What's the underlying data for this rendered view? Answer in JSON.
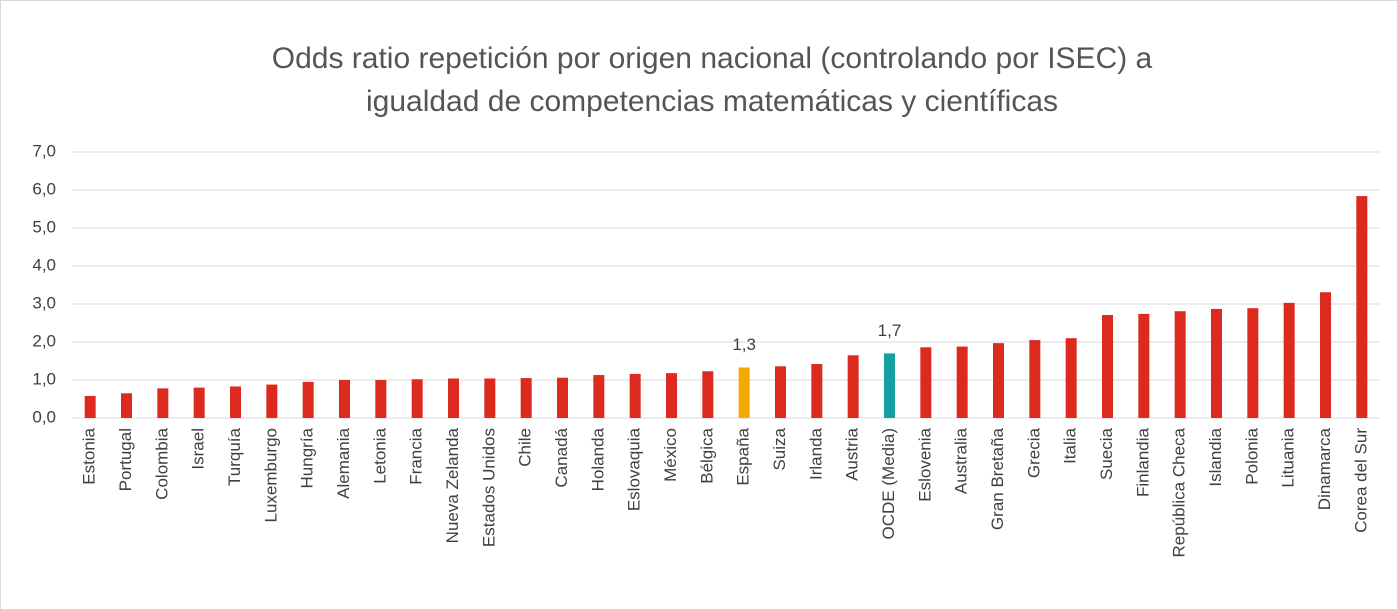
{
  "chart_data": {
    "type": "bar",
    "title": [
      "Odds ratio repetición por origen nacional (controlando por ISEC) a",
      "igualdad de competencias matemáticas y científicas"
    ],
    "categories": [
      "Estonia",
      "Portugal",
      "Colombia",
      "Israel",
      "Turquía",
      "Luxemburgo",
      "Hungría",
      "Alemania",
      "Letonia",
      "Francia",
      "Nueva Zelanda",
      "Estados Unidos",
      "Chile",
      "Canadá",
      "Holanda",
      "Eslovaquia",
      "México",
      "Bélgica",
      "España",
      "Suiza",
      "Irlanda",
      "Austria",
      "OCDE (Media)",
      "Eslovenia",
      "Australia",
      "Gran Bretaña",
      "Grecia",
      "Italia",
      "Suecia",
      "Finlandia",
      "República Checa",
      "Islandia",
      "Polonia",
      "Lituania",
      "Dinamarca",
      "Corea del Sur"
    ],
    "values": [
      0.58,
      0.65,
      0.78,
      0.8,
      0.83,
      0.88,
      0.95,
      1.0,
      1.0,
      1.02,
      1.04,
      1.04,
      1.05,
      1.06,
      1.13,
      1.16,
      1.18,
      1.23,
      1.33,
      1.36,
      1.42,
      1.65,
      1.7,
      1.86,
      1.88,
      1.97,
      2.05,
      2.1,
      2.71,
      2.74,
      2.81,
      2.87,
      2.89,
      3.03,
      3.31,
      5.84
    ],
    "value_labels": [
      null,
      null,
      null,
      null,
      null,
      null,
      null,
      null,
      null,
      null,
      null,
      null,
      null,
      null,
      null,
      null,
      null,
      null,
      "1,3",
      null,
      null,
      null,
      "1,7",
      null,
      null,
      null,
      null,
      null,
      null,
      null,
      null,
      null,
      null,
      null,
      null,
      null
    ],
    "colors": [
      "#dc2a1e",
      "#dc2a1e",
      "#dc2a1e",
      "#dc2a1e",
      "#dc2a1e",
      "#dc2a1e",
      "#dc2a1e",
      "#dc2a1e",
      "#dc2a1e",
      "#dc2a1e",
      "#dc2a1e",
      "#dc2a1e",
      "#dc2a1e",
      "#dc2a1e",
      "#dc2a1e",
      "#dc2a1e",
      "#dc2a1e",
      "#dc2a1e",
      "#f4a900",
      "#dc2a1e",
      "#dc2a1e",
      "#dc2a1e",
      "#14a0a0",
      "#dc2a1e",
      "#dc2a1e",
      "#dc2a1e",
      "#dc2a1e",
      "#dc2a1e",
      "#dc2a1e",
      "#dc2a1e",
      "#dc2a1e",
      "#dc2a1e",
      "#dc2a1e",
      "#dc2a1e",
      "#dc2a1e",
      "#dc2a1e"
    ],
    "ylim": [
      0,
      7
    ],
    "yticks": [
      {
        "value": 0,
        "label": "0,0"
      },
      {
        "value": 1,
        "label": "1,0"
      },
      {
        "value": 2,
        "label": "2,0"
      },
      {
        "value": 3,
        "label": "3,0"
      },
      {
        "value": 4,
        "label": "4,0"
      },
      {
        "value": 5,
        "label": "5,0"
      },
      {
        "value": 6,
        "label": "6,0"
      },
      {
        "value": 7,
        "label": "7,0"
      }
    ],
    "grid": true
  }
}
